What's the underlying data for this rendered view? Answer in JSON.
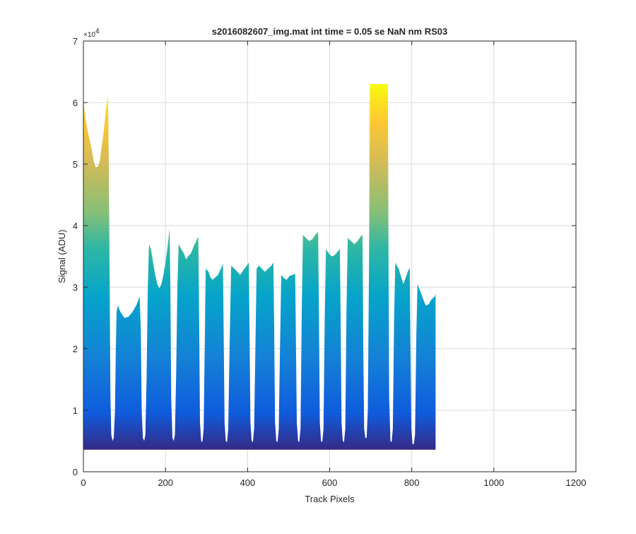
{
  "chart_data": {
    "type": "area",
    "title": "s2016082607_img.mat int time = 0.05 se  NaN nm RS03",
    "xlabel": "Track Pixels",
    "ylabel": "Signal (ADU)",
    "exponent_label": "×10",
    "exponent_power": "4",
    "xlim": [
      0,
      1200
    ],
    "ylim": [
      0,
      7
    ],
    "y_scale_factor": 10000,
    "x_ticks": [
      0,
      200,
      400,
      600,
      800,
      1000,
      1200
    ],
    "y_ticks": [
      0,
      1,
      2,
      3,
      4,
      5,
      6,
      7
    ],
    "x_tick_labels": [
      "0",
      "200",
      "400",
      "600",
      "800",
      "1000",
      "1200"
    ],
    "y_tick_labels": [
      "0",
      "1",
      "2",
      "3",
      "4",
      "5",
      "6",
      "7"
    ],
    "grid": true,
    "colormap": "parula",
    "colors": {
      "low": "#352a87",
      "c2": "#0f5cdd",
      "c3": "#1481d6",
      "c4": "#06a4ca",
      "c5": "#2eb7a4",
      "c6": "#87bf77",
      "c7": "#d1bb59",
      "c8": "#fec832",
      "high": "#f9fb0e",
      "grid": "#d9d9d9",
      "axis": "#262626"
    },
    "baseline": 0.37,
    "profile": [
      [
        0,
        0.37
      ],
      [
        0,
        6.0
      ],
      [
        5,
        5.75
      ],
      [
        10,
        5.55
      ],
      [
        15,
        5.4
      ],
      [
        20,
        5.25
      ],
      [
        25,
        5.05
      ],
      [
        30,
        4.95
      ],
      [
        35,
        4.95
      ],
      [
        40,
        5.05
      ],
      [
        45,
        5.3
      ],
      [
        50,
        5.55
      ],
      [
        55,
        5.9
      ],
      [
        60,
        6.12
      ],
      [
        62,
        5.0
      ],
      [
        64,
        3.0
      ],
      [
        66,
        1.2
      ],
      [
        68,
        0.6
      ],
      [
        71,
        0.5
      ],
      [
        74,
        0.55
      ],
      [
        77,
        1.0
      ],
      [
        79,
        2.0
      ],
      [
        81,
        2.6
      ],
      [
        84,
        2.7
      ],
      [
        90,
        2.6
      ],
      [
        95,
        2.55
      ],
      [
        100,
        2.5
      ],
      [
        110,
        2.52
      ],
      [
        120,
        2.6
      ],
      [
        130,
        2.72
      ],
      [
        137,
        2.85
      ],
      [
        140,
        2.3
      ],
      [
        142,
        1.0
      ],
      [
        145,
        0.55
      ],
      [
        148,
        0.5
      ],
      [
        151,
        0.6
      ],
      [
        154,
        1.5
      ],
      [
        157,
        3.0
      ],
      [
        160,
        3.7
      ],
      [
        165,
        3.6
      ],
      [
        170,
        3.4
      ],
      [
        175,
        3.2
      ],
      [
        180,
        3.05
      ],
      [
        185,
        2.98
      ],
      [
        190,
        3.05
      ],
      [
        195,
        3.2
      ],
      [
        200,
        3.4
      ],
      [
        205,
        3.65
      ],
      [
        210,
        3.95
      ],
      [
        212,
        3.0
      ],
      [
        214,
        1.2
      ],
      [
        217,
        0.55
      ],
      [
        220,
        0.5
      ],
      [
        223,
        0.6
      ],
      [
        226,
        1.6
      ],
      [
        229,
        3.0
      ],
      [
        232,
        3.7
      ],
      [
        240,
        3.6
      ],
      [
        245,
        3.55
      ],
      [
        250,
        3.45
      ],
      [
        255,
        3.5
      ],
      [
        262,
        3.55
      ],
      [
        268,
        3.65
      ],
      [
        275,
        3.75
      ],
      [
        280,
        3.82
      ],
      [
        282,
        2.5
      ],
      [
        284,
        0.8
      ],
      [
        287,
        0.5
      ],
      [
        290,
        0.48
      ],
      [
        293,
        0.7
      ],
      [
        296,
        2.2
      ],
      [
        298,
        3.3
      ],
      [
        305,
        3.25
      ],
      [
        310,
        3.15
      ],
      [
        315,
        3.12
      ],
      [
        320,
        3.15
      ],
      [
        328,
        3.2
      ],
      [
        335,
        3.3
      ],
      [
        340,
        3.38
      ],
      [
        342,
        2.2
      ],
      [
        344,
        0.8
      ],
      [
        347,
        0.5
      ],
      [
        350,
        0.48
      ],
      [
        353,
        0.7
      ],
      [
        356,
        2.0
      ],
      [
        360,
        3.35
      ],
      [
        368,
        3.3
      ],
      [
        375,
        3.25
      ],
      [
        382,
        3.2
      ],
      [
        390,
        3.28
      ],
      [
        398,
        3.35
      ],
      [
        403,
        3.4
      ],
      [
        405,
        2.2
      ],
      [
        407,
        0.8
      ],
      [
        410,
        0.5
      ],
      [
        413,
        0.48
      ],
      [
        416,
        0.7
      ],
      [
        419,
        2.0
      ],
      [
        422,
        3.3
      ],
      [
        428,
        3.35
      ],
      [
        435,
        3.3
      ],
      [
        442,
        3.25
      ],
      [
        450,
        3.3
      ],
      [
        458,
        3.35
      ],
      [
        463,
        3.4
      ],
      [
        465,
        2.2
      ],
      [
        467,
        0.8
      ],
      [
        470,
        0.5
      ],
      [
        473,
        0.48
      ],
      [
        476,
        0.7
      ],
      [
        479,
        2.0
      ],
      [
        482,
        3.2
      ],
      [
        488,
        3.15
      ],
      [
        495,
        3.12
      ],
      [
        502,
        3.18
      ],
      [
        510,
        3.2
      ],
      [
        516,
        3.22
      ],
      [
        518,
        2.0
      ],
      [
        520,
        0.8
      ],
      [
        523,
        0.5
      ],
      [
        526,
        0.48
      ],
      [
        529,
        0.7
      ],
      [
        532,
        2.6
      ],
      [
        535,
        3.85
      ],
      [
        542,
        3.8
      ],
      [
        550,
        3.75
      ],
      [
        558,
        3.78
      ],
      [
        565,
        3.85
      ],
      [
        572,
        3.9
      ],
      [
        574,
        2.5
      ],
      [
        576,
        0.8
      ],
      [
        579,
        0.5
      ],
      [
        582,
        0.48
      ],
      [
        585,
        0.7
      ],
      [
        588,
        2.5
      ],
      [
        591,
        3.62
      ],
      [
        598,
        3.55
      ],
      [
        605,
        3.5
      ],
      [
        612,
        3.52
      ],
      [
        620,
        3.58
      ],
      [
        625,
        3.62
      ],
      [
        627,
        2.3
      ],
      [
        629,
        0.8
      ],
      [
        632,
        0.5
      ],
      [
        635,
        0.48
      ],
      [
        638,
        0.7
      ],
      [
        641,
        2.6
      ],
      [
        644,
        3.8
      ],
      [
        652,
        3.75
      ],
      [
        660,
        3.7
      ],
      [
        668,
        3.75
      ],
      [
        675,
        3.82
      ],
      [
        680,
        3.85
      ],
      [
        682,
        2.0
      ],
      [
        684,
        0.7
      ],
      [
        687,
        0.55
      ],
      [
        690,
        0.55
      ],
      [
        693,
        1.0
      ],
      [
        696,
        3.5
      ],
      [
        698,
        6.3
      ],
      [
        720,
        6.3
      ],
      [
        742,
        6.3
      ],
      [
        743,
        4.0
      ],
      [
        745,
        1.2
      ],
      [
        748,
        0.5
      ],
      [
        751,
        0.48
      ],
      [
        754,
        0.7
      ],
      [
        757,
        2.5
      ],
      [
        760,
        3.4
      ],
      [
        768,
        3.3
      ],
      [
        775,
        3.15
      ],
      [
        780,
        3.05
      ],
      [
        785,
        3.15
      ],
      [
        790,
        3.25
      ],
      [
        795,
        3.32
      ],
      [
        797,
        2.0
      ],
      [
        799,
        0.7
      ],
      [
        802,
        0.45
      ],
      [
        805,
        0.45
      ],
      [
        808,
        0.6
      ],
      [
        811,
        2.2
      ],
      [
        814,
        3.05
      ],
      [
        820,
        2.95
      ],
      [
        827,
        2.82
      ],
      [
        834,
        2.7
      ],
      [
        841,
        2.72
      ],
      [
        848,
        2.8
      ],
      [
        856,
        2.85
      ],
      [
        858,
        2.9
      ],
      [
        858,
        0.6
      ],
      [
        858,
        0.37
      ]
    ]
  }
}
